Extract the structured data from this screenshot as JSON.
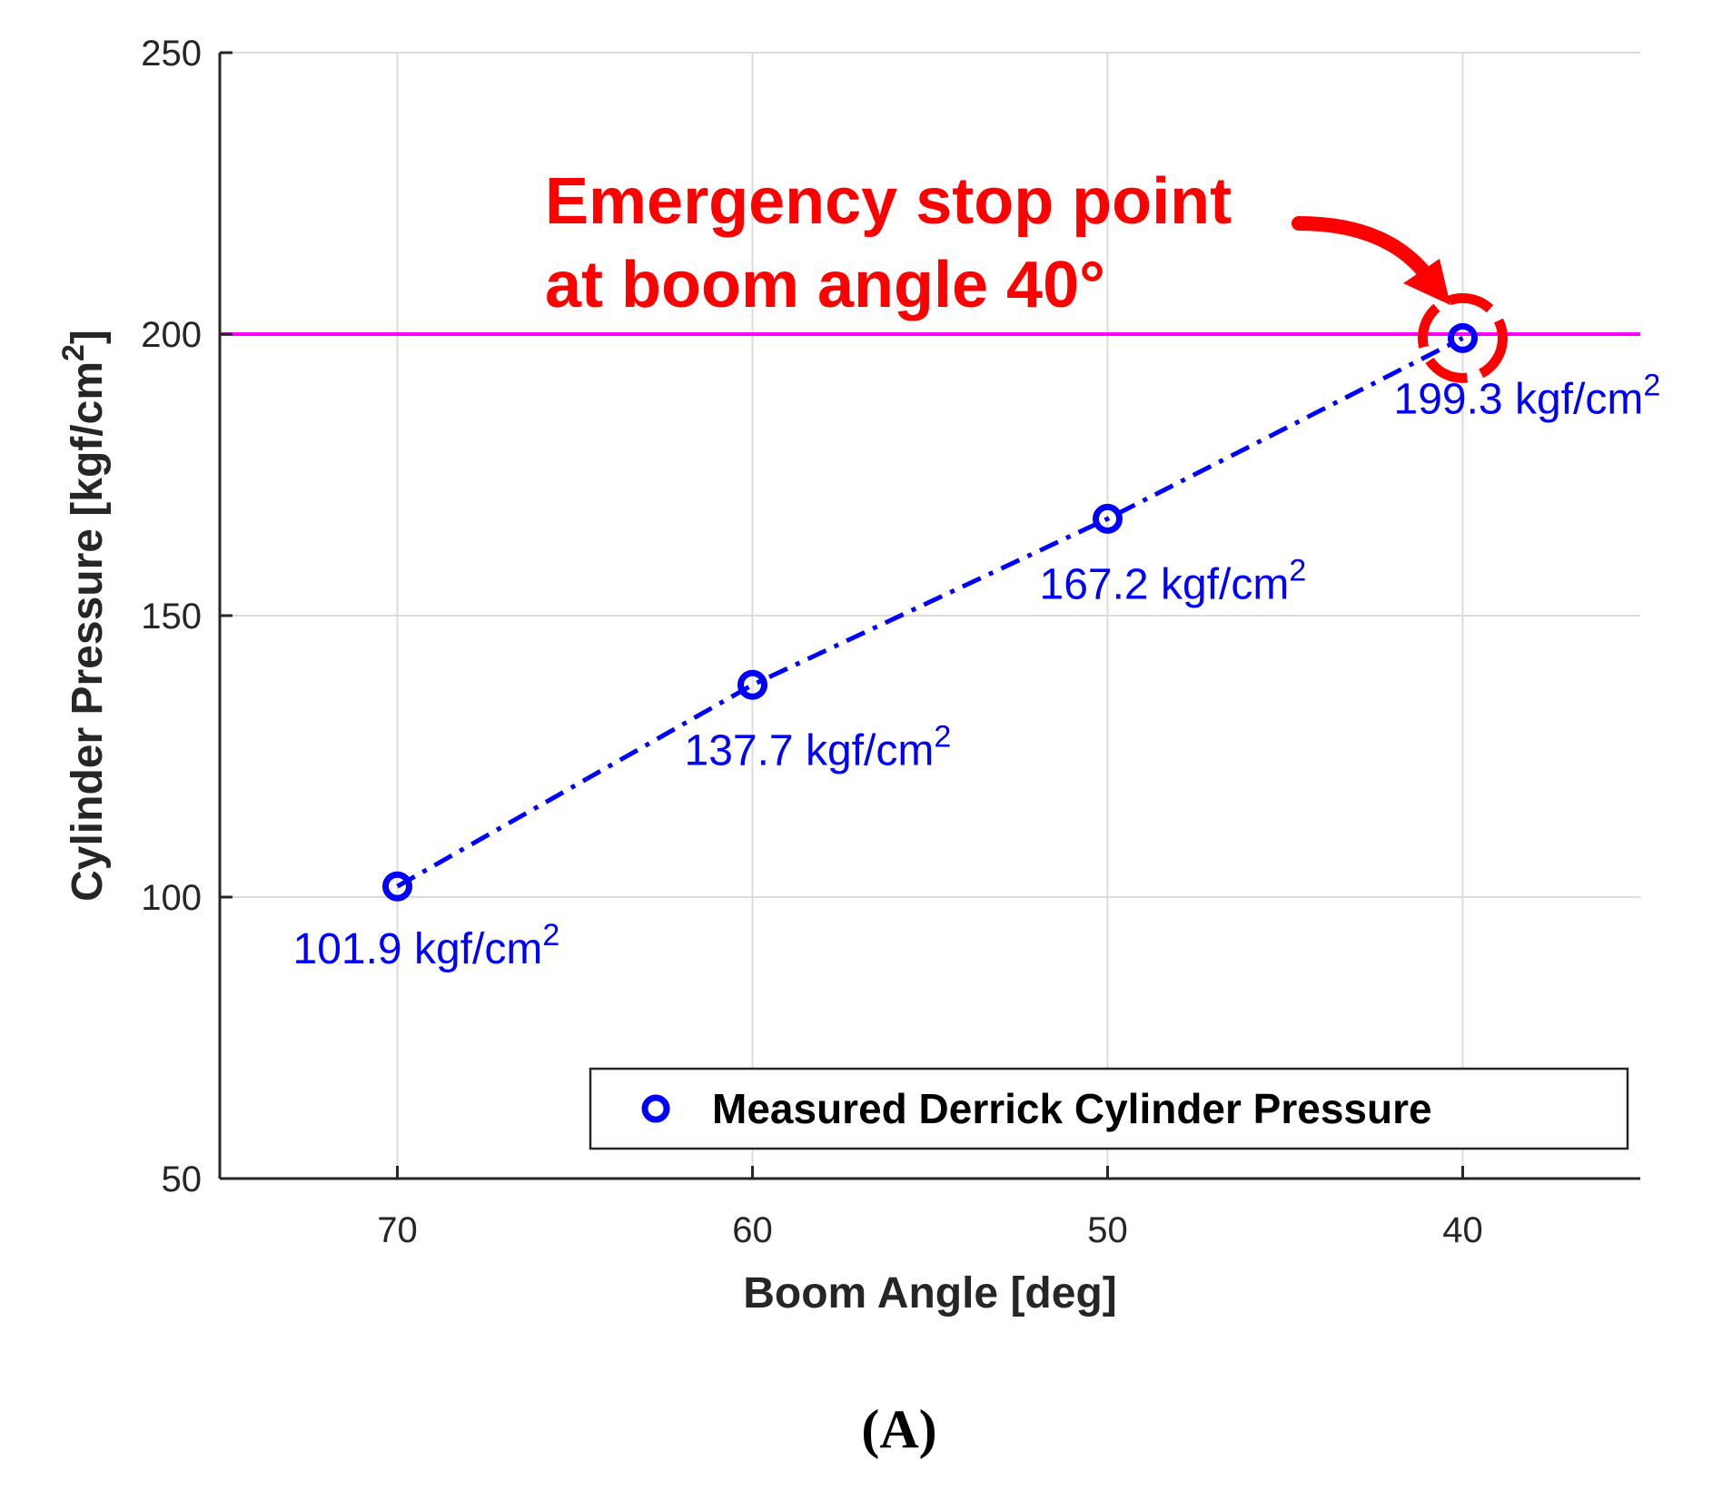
{
  "chart_data": {
    "type": "line",
    "x": [
      70,
      60,
      50,
      40
    ],
    "series": [
      {
        "name": "Measured Derrick Cylinder Pressure",
        "values": [
          101.9,
          137.7,
          167.2,
          199.3
        ],
        "color": "#0000ff",
        "line_style": "dash-dot",
        "marker": "circle"
      }
    ],
    "data_labels": [
      "101.9 kgf/cm",
      "137.7 kgf/cm",
      "167.2 kgf/cm",
      "199.3 kgf/cm"
    ],
    "data_label_superscript": "2",
    "xlabel": "Boom Angle [deg]",
    "ylabel": "Cylinder Pressure [kgf/cm",
    "ylabel_superscript": "2",
    "ylabel_suffix": "]",
    "xlim": [
      75,
      35
    ],
    "ylim": [
      50,
      250
    ],
    "xticks": [
      "70",
      "60",
      "50",
      "40"
    ],
    "yticks": [
      "50",
      "100",
      "150",
      "200",
      "250"
    ],
    "xtick_values": [
      70,
      60,
      50,
      40
    ],
    "ytick_values": [
      50,
      100,
      150,
      200,
      250
    ],
    "grid": true,
    "threshold": {
      "value": 200,
      "color": "#ff00ff"
    },
    "annotation": {
      "line1": "Emergency stop point",
      "line2": "at boom angle 40°",
      "color": "#ff0000",
      "target_x": 40,
      "target_y": 199.3
    },
    "legend": {
      "placement": "bottom-right",
      "label": "Measured Derrick Cylinder Pressure"
    },
    "caption": "(A)"
  }
}
